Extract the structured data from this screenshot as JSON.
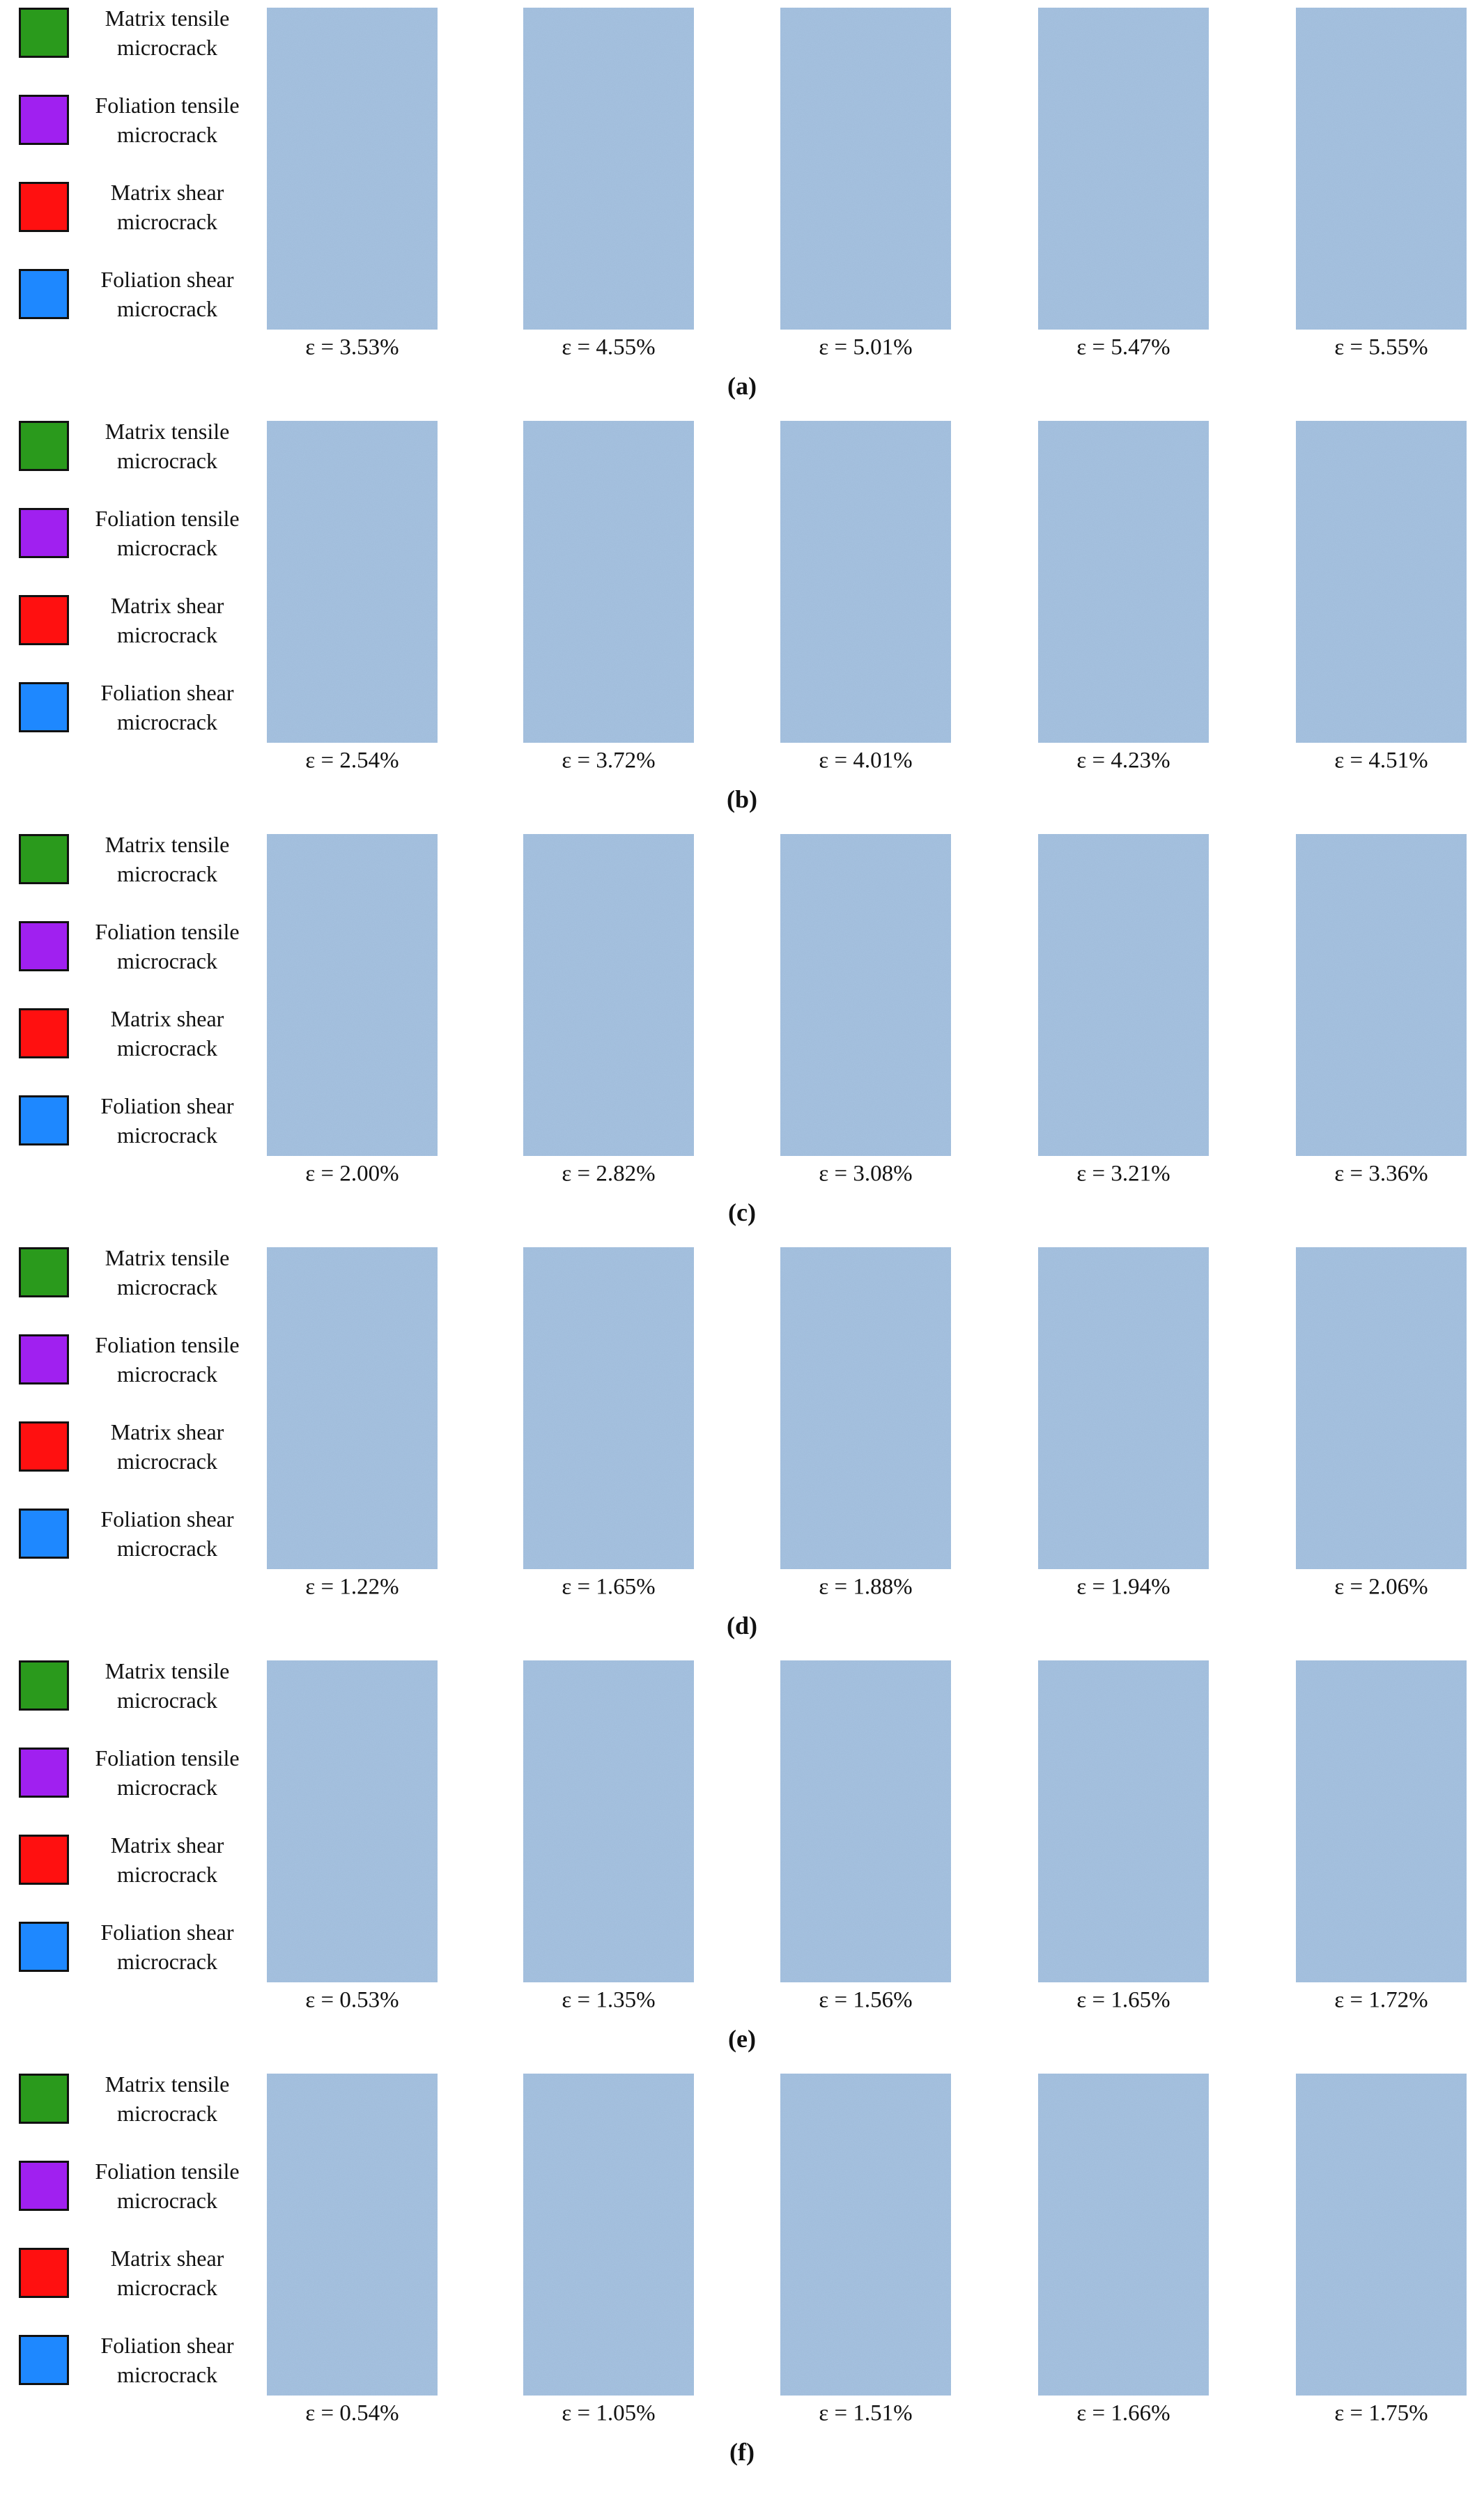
{
  "legend": [
    {
      "label": "Matrix tensile microcrack",
      "color": "#2a9a1c"
    },
    {
      "label": "Foliation tensile microcrack",
      "color": "#a020f0"
    },
    {
      "label": "Matrix shear microcrack",
      "color": "#ff1010"
    },
    {
      "label": "Foliation shear microcrack",
      "color": "#1e88ff"
    }
  ],
  "rows": [
    {
      "label": "(a)",
      "strains": [
        "ε = 3.53%",
        "ε = 4.55%",
        "ε = 5.01%",
        "ε = 5.47%",
        "ε = 5.55%"
      ]
    },
    {
      "label": "(b)",
      "strains": [
        "ε = 2.54%",
        "ε = 3.72%",
        "ε = 4.01%",
        "ε = 4.23%",
        "ε = 4.51%"
      ]
    },
    {
      "label": "(c)",
      "strains": [
        "ε = 2.00%",
        "ε = 2.82%",
        "ε = 3.08%",
        "ε = 3.21%",
        "ε = 3.36%"
      ]
    },
    {
      "label": "(d)",
      "strains": [
        "ε = 1.22%",
        "ε = 1.65%",
        "ε = 1.88%",
        "ε = 1.94%",
        "ε = 2.06%"
      ]
    },
    {
      "label": "(e)",
      "strains": [
        "ε = 0.53%",
        "ε = 1.35%",
        "ε = 1.56%",
        "ε = 1.65%",
        "ε = 1.72%"
      ]
    },
    {
      "label": "(f)",
      "strains": [
        "ε = 0.54%",
        "ε = 1.05%",
        "ε = 1.51%",
        "ε = 1.66%",
        "ε = 1.75%"
      ]
    }
  ]
}
